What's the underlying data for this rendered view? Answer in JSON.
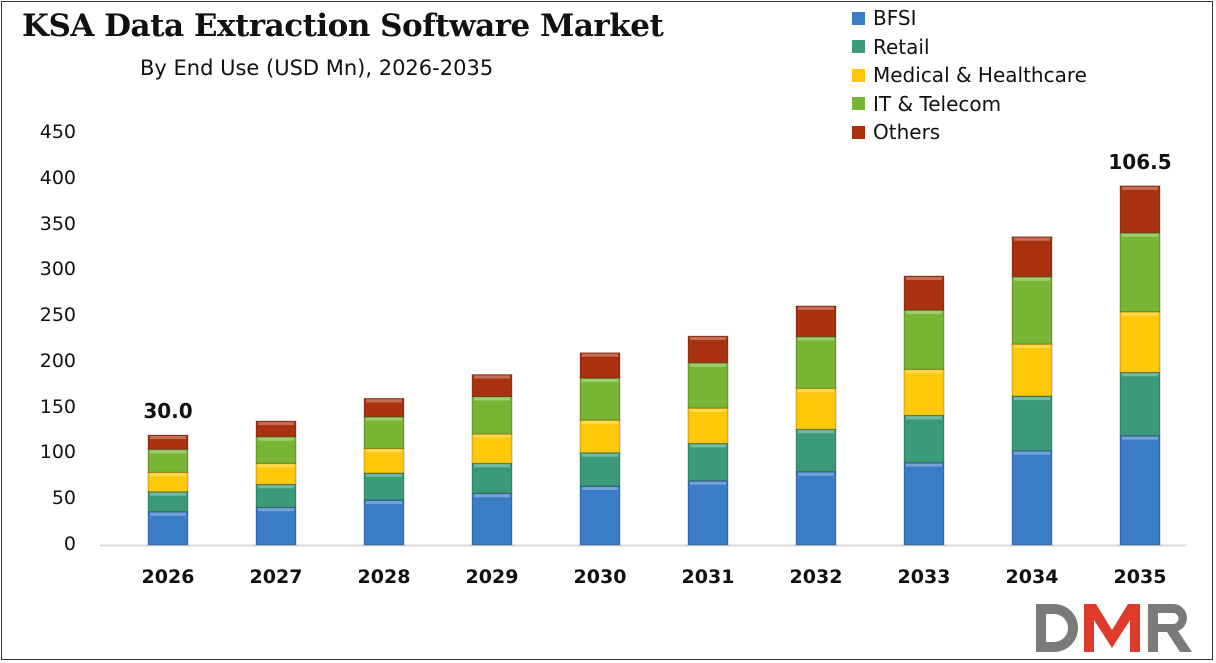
{
  "chart_data": {
    "type": "bar",
    "stacked": true,
    "title": "KSA Data Extraction Software Market",
    "subtitle": "By End Use (USD Mn), 2026-2035",
    "xlabel": "",
    "ylabel": "",
    "ylim": [
      0,
      450
    ],
    "yticks": [
      0,
      50,
      100,
      150,
      200,
      250,
      300,
      350,
      400,
      450
    ],
    "grid": false,
    "legend_position": "top-right",
    "categories": [
      "2026",
      "2027",
      "2028",
      "2029",
      "2030",
      "2031",
      "2032",
      "2033",
      "2034",
      "2035"
    ],
    "series": [
      {
        "name": "BFSI",
        "color": "#3a7cc6",
        "values": [
          36.4,
          41.2,
          49.1,
          56.5,
          64.4,
          70.2,
          80.1,
          89.9,
          103.0,
          119.4
        ]
      },
      {
        "name": "Retail",
        "color": "#3b9a78",
        "values": [
          21.8,
          25.1,
          29.5,
          32.8,
          36.4,
          40.8,
          46.3,
          51.8,
          59.7,
          69.2
        ]
      },
      {
        "name": "Medical & Healthcare",
        "color": "#fdc80a",
        "values": [
          21.2,
          22.9,
          26.9,
          32.1,
          35.7,
          38.6,
          44.8,
          50.2,
          56.8,
          66.2
        ]
      },
      {
        "name": "IT & Telecom",
        "color": "#78b534",
        "values": [
          25.1,
          29.1,
          34.6,
          40.8,
          45.9,
          49.5,
          56.4,
          64.8,
          73.5,
          86.2
        ]
      },
      {
        "name": "Others",
        "color": "#a83210",
        "values": [
          15.6,
          17.1,
          20.1,
          24.0,
          27.6,
          29.1,
          33.5,
          37.1,
          43.7,
          51.3
        ]
      }
    ],
    "annotations": [
      {
        "category": "2026",
        "text": "30.0"
      },
      {
        "category": "2035",
        "text": "106.5"
      }
    ]
  },
  "logo": {
    "text": "DMR"
  }
}
